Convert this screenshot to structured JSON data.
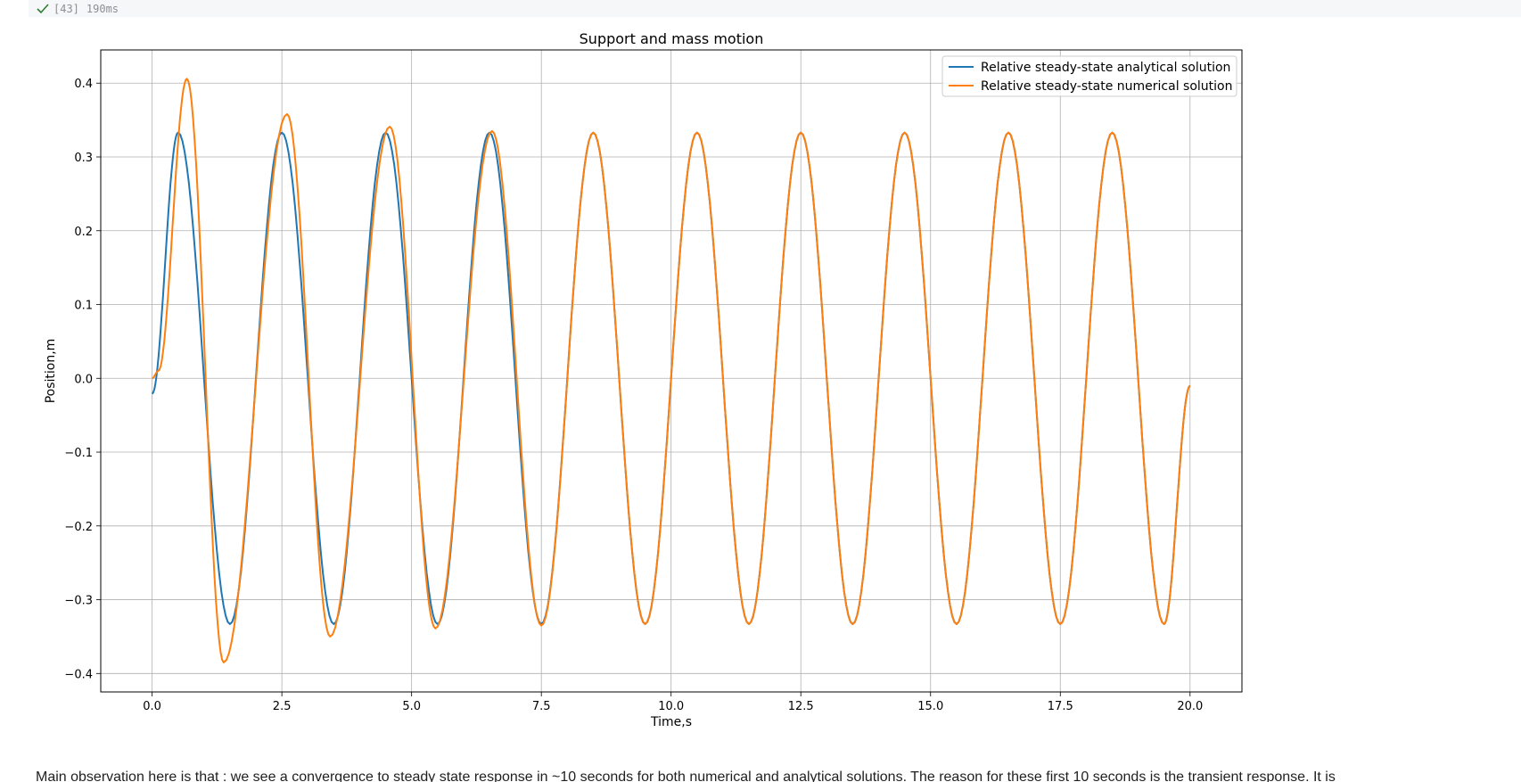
{
  "cell": {
    "status_icon": "check-icon",
    "status_color": "#2e7d32",
    "execution_count": "[43]",
    "duration": "190ms"
  },
  "chart_data": {
    "type": "line",
    "title": "Support and mass motion",
    "xlabel": "Time,s",
    "ylabel": "Position,m",
    "xlim": [
      -0.99,
      21.0
    ],
    "ylim": [
      -0.425,
      0.445
    ],
    "xticks": [
      0,
      2.5,
      5,
      7.5,
      10,
      12.5,
      15,
      17.5,
      20
    ],
    "xtick_labels": [
      "0.0",
      "2.5",
      "5.0",
      "7.5",
      "10.0",
      "12.5",
      "15.0",
      "17.5",
      "20.0"
    ],
    "yticks": [
      0.4,
      0.3,
      0.2,
      0.1,
      0.0,
      -0.1,
      -0.2,
      -0.3,
      -0.4
    ],
    "ytick_labels": [
      "0.4",
      "0.3",
      "0.2",
      "0.1",
      "0.0",
      "−0.1",
      "−0.2",
      "−0.3",
      "−0.4"
    ],
    "grid": true,
    "legend_position": "top-right",
    "series": [
      {
        "name": "Relative steady-state analytical solution",
        "color": "#1f77b4",
        "x": [
          0,
          0.5,
          1.5,
          2.5,
          3.5,
          4.5,
          5.5,
          6.5,
          7.5,
          8.5,
          9.5,
          10.5,
          11.5,
          12.5,
          13.5,
          14.5,
          15.5,
          16.5,
          17.5,
          18.5,
          19.5,
          20.0
        ],
        "y": [
          -0.021,
          0.333,
          -0.333,
          0.333,
          -0.333,
          0.333,
          -0.333,
          0.333,
          -0.333,
          0.333,
          -0.333,
          0.333,
          -0.333,
          0.333,
          -0.333,
          0.333,
          -0.333,
          0.333,
          -0.333,
          0.333,
          -0.333,
          -0.01
        ]
      },
      {
        "name": "Relative steady-state numerical solution",
        "color": "#ff7f0e",
        "x": [
          0,
          0.12,
          0.67,
          1.38,
          2.6,
          3.43,
          4.58,
          5.46,
          6.55,
          7.5,
          8.5,
          9.5,
          10.5,
          11.5,
          12.5,
          13.5,
          14.5,
          15.5,
          16.5,
          17.5,
          18.5,
          19.5,
          20.0
        ],
        "y": [
          0.0,
          0.01,
          0.406,
          -0.385,
          0.358,
          -0.35,
          0.341,
          -0.339,
          0.335,
          -0.335,
          0.333,
          -0.333,
          0.333,
          -0.333,
          0.333,
          -0.333,
          0.333,
          -0.333,
          0.333,
          -0.333,
          0.333,
          -0.333,
          -0.01
        ]
      }
    ]
  },
  "observation": {
    "text": "Main observation here is that : we see a convergence to steady state response in ~10 seconds for both numerical and analytical solutions. The reason for these first 10 seconds is the transient response. It is"
  }
}
